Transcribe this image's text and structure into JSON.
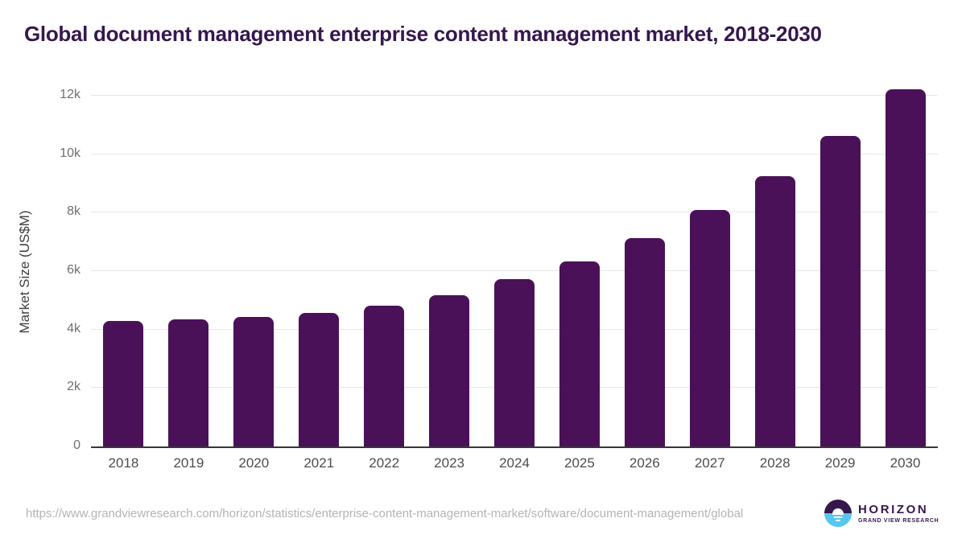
{
  "title": "Global document management enterprise content management market, 2018-2030",
  "chart_data": {
    "type": "bar",
    "title": "Global document management enterprise content management market, 2018-2030",
    "categories": [
      "2018",
      "2019",
      "2020",
      "2021",
      "2022",
      "2023",
      "2024",
      "2025",
      "2026",
      "2027",
      "2028",
      "2029",
      "2030"
    ],
    "values": [
      4290,
      4340,
      4420,
      4580,
      4830,
      5180,
      5720,
      6330,
      7140,
      8090,
      9240,
      10630,
      12230
    ],
    "xlabel": "",
    "ylabel": "Market Size (US$M)",
    "ylim": [
      0,
      12000
    ],
    "yticks": [
      0,
      2000,
      4000,
      6000,
      8000,
      10000,
      12000
    ],
    "ytick_labels": [
      "0",
      "2k",
      "4k",
      "6k",
      "8k",
      "10k",
      "12k"
    ],
    "grid": true,
    "legend": "none",
    "bar_color": "#4a1158"
  },
  "footer": {
    "source_url": "https://www.grandviewresearch.com/horizon/statistics/enterprise-content-management-market/software/document-management/global",
    "logo": {
      "name": "HORIZON",
      "subtitle": "GRAND VIEW RESEARCH"
    }
  },
  "colors": {
    "bar": "#4a1158",
    "title": "#35174e",
    "axis_line": "#363636",
    "gridline": "#e7e7e7",
    "ytick_label": "#6f6f6f",
    "xtick_label": "#4d4d4d",
    "url_text": "#b4b4b4",
    "logo_purple": "#35174e",
    "logo_blue": "#56c7f0"
  }
}
